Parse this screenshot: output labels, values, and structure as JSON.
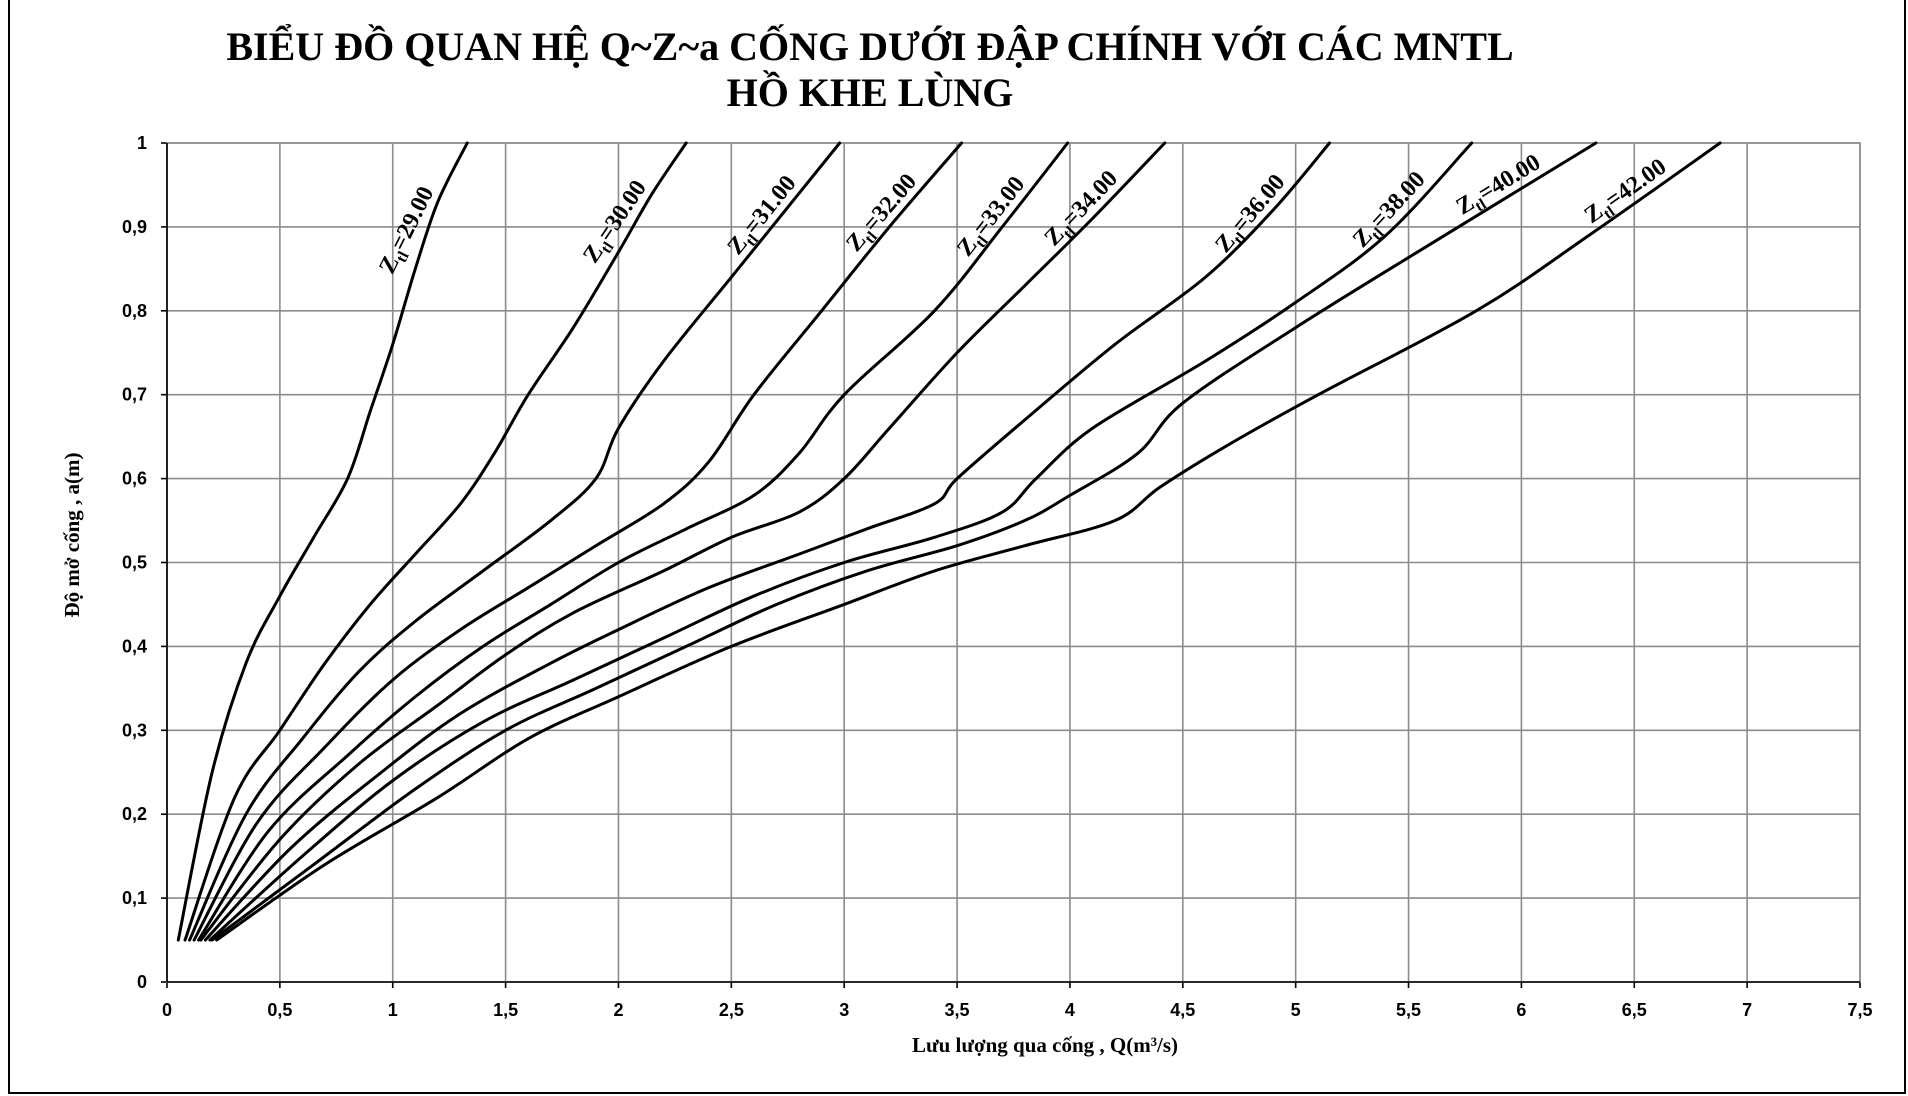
{
  "chart_data": {
    "type": "line",
    "title_line1": "BIỂU ĐỒ QUAN HỆ Q~Z~a CỐNG DƯỚI ĐẬP CHÍNH VỚI CÁC MNTL",
    "title_line2": "HỒ KHE LÙNG",
    "xlabel": "Lưu lượng qua cống , Q(m³/s)",
    "ylabel": "Độ mở cống , a(m)",
    "xlim": [
      0,
      7.5
    ],
    "ylim": [
      0,
      1
    ],
    "grid": true,
    "x_ticks": [
      "0",
      "0,5",
      "1",
      "1,5",
      "2",
      "2,5",
      "3",
      "3,5",
      "4",
      "4,5",
      "5",
      "5,5",
      "6",
      "6,5",
      "7",
      "7,5"
    ],
    "y_ticks": [
      "0",
      "0,1",
      "0,2",
      "0,3",
      "0,4",
      "0,5",
      "0,6",
      "0,7",
      "0,8",
      "0,9",
      "1"
    ],
    "line_color": "#000000",
    "grid_color": "#8c8c8c",
    "series": [
      {
        "name": "Ztl=29.00",
        "label_prefix": "Z",
        "label_sub": "tl",
        "label_value": "=29.00",
        "points": [
          [
            0.05,
            0.05
          ],
          [
            0.2,
            0.25
          ],
          [
            0.35,
            0.38
          ],
          [
            0.5,
            0.46
          ],
          [
            0.65,
            0.53
          ],
          [
            0.8,
            0.6
          ],
          [
            0.9,
            0.68
          ],
          [
            1.0,
            0.76
          ],
          [
            1.1,
            0.85
          ],
          [
            1.2,
            0.93
          ],
          [
            1.33,
            1.0
          ]
        ]
      },
      {
        "name": "Ztl=30.00",
        "label_prefix": "Z",
        "label_sub": "tl",
        "label_value": "=30.00",
        "points": [
          [
            0.08,
            0.05
          ],
          [
            0.3,
            0.22
          ],
          [
            0.5,
            0.3
          ],
          [
            0.7,
            0.38
          ],
          [
            0.9,
            0.45
          ],
          [
            1.1,
            0.51
          ],
          [
            1.3,
            0.57
          ],
          [
            1.45,
            0.63
          ],
          [
            1.6,
            0.7
          ],
          [
            1.8,
            0.78
          ],
          [
            2.0,
            0.87
          ],
          [
            2.15,
            0.94
          ],
          [
            2.3,
            1.0
          ]
        ]
      },
      {
        "name": "Ztl=31.00",
        "label_prefix": "Z",
        "label_sub": "tl",
        "label_value": "=31.00",
        "points": [
          [
            0.1,
            0.05
          ],
          [
            0.35,
            0.2
          ],
          [
            0.6,
            0.29
          ],
          [
            0.85,
            0.37
          ],
          [
            1.1,
            0.43
          ],
          [
            1.4,
            0.49
          ],
          [
            1.7,
            0.55
          ],
          [
            1.9,
            0.6
          ],
          [
            2.0,
            0.66
          ],
          [
            2.2,
            0.74
          ],
          [
            2.5,
            0.84
          ],
          [
            2.8,
            0.94
          ],
          [
            2.98,
            1.0
          ]
        ]
      },
      {
        "name": "Ztl=32.00",
        "label_prefix": "Z",
        "label_sub": "tl",
        "label_value": "=32.00",
        "points": [
          [
            0.12,
            0.05
          ],
          [
            0.4,
            0.19
          ],
          [
            0.7,
            0.28
          ],
          [
            1.0,
            0.36
          ],
          [
            1.3,
            0.42
          ],
          [
            1.6,
            0.47
          ],
          [
            1.9,
            0.52
          ],
          [
            2.2,
            0.57
          ],
          [
            2.4,
            0.62
          ],
          [
            2.6,
            0.7
          ],
          [
            2.9,
            0.8
          ],
          [
            3.2,
            0.9
          ],
          [
            3.52,
            1.0
          ]
        ]
      },
      {
        "name": "Ztl=33.00",
        "label_prefix": "Z",
        "label_sub": "tl",
        "label_value": "=33.00",
        "points": [
          [
            0.14,
            0.05
          ],
          [
            0.45,
            0.18
          ],
          [
            0.8,
            0.27
          ],
          [
            1.1,
            0.34
          ],
          [
            1.4,
            0.4
          ],
          [
            1.7,
            0.45
          ],
          [
            2.0,
            0.5
          ],
          [
            2.3,
            0.54
          ],
          [
            2.6,
            0.58
          ],
          [
            2.8,
            0.63
          ],
          [
            3.0,
            0.7
          ],
          [
            3.4,
            0.8
          ],
          [
            3.7,
            0.9
          ],
          [
            3.99,
            1.0
          ]
        ]
      },
      {
        "name": "Ztl=34.00",
        "label_prefix": "Z",
        "label_sub": "tl",
        "label_value": "=34.00",
        "points": [
          [
            0.15,
            0.05
          ],
          [
            0.5,
            0.17
          ],
          [
            0.85,
            0.26
          ],
          [
            1.2,
            0.33
          ],
          [
            1.5,
            0.39
          ],
          [
            1.8,
            0.44
          ],
          [
            2.2,
            0.49
          ],
          [
            2.5,
            0.53
          ],
          [
            2.8,
            0.56
          ],
          [
            3.0,
            0.6
          ],
          [
            3.2,
            0.66
          ],
          [
            3.5,
            0.75
          ],
          [
            3.8,
            0.83
          ],
          [
            4.1,
            0.91
          ],
          [
            4.42,
            1.0
          ]
        ]
      },
      {
        "name": "Ztl=36.00",
        "label_prefix": "Z",
        "label_sub": "tl",
        "label_value": "=36.00",
        "points": [
          [
            0.17,
            0.05
          ],
          [
            0.55,
            0.16
          ],
          [
            0.95,
            0.25
          ],
          [
            1.3,
            0.32
          ],
          [
            1.7,
            0.38
          ],
          [
            2.0,
            0.42
          ],
          [
            2.4,
            0.47
          ],
          [
            2.8,
            0.51
          ],
          [
            3.1,
            0.54
          ],
          [
            3.4,
            0.57
          ],
          [
            3.5,
            0.6
          ],
          [
            3.8,
            0.67
          ],
          [
            4.2,
            0.76
          ],
          [
            4.6,
            0.84
          ],
          [
            4.9,
            0.92
          ],
          [
            5.15,
            1.0
          ]
        ]
      },
      {
        "name": "Ztl=38.00",
        "label_prefix": "Z",
        "label_sub": "tl",
        "label_value": "=38.00",
        "points": [
          [
            0.19,
            0.05
          ],
          [
            0.6,
            0.15
          ],
          [
            1.0,
            0.24
          ],
          [
            1.4,
            0.31
          ],
          [
            1.8,
            0.36
          ],
          [
            2.2,
            0.41
          ],
          [
            2.6,
            0.46
          ],
          [
            3.0,
            0.5
          ],
          [
            3.4,
            0.53
          ],
          [
            3.7,
            0.56
          ],
          [
            3.85,
            0.6
          ],
          [
            4.1,
            0.66
          ],
          [
            4.6,
            0.74
          ],
          [
            5.0,
            0.81
          ],
          [
            5.4,
            0.89
          ],
          [
            5.78,
            1.0
          ]
        ]
      },
      {
        "name": "Ztl=40.00",
        "label_prefix": "Z",
        "label_sub": "tl",
        "label_value": "=40.00",
        "points": [
          [
            0.2,
            0.05
          ],
          [
            0.65,
            0.14
          ],
          [
            1.1,
            0.23
          ],
          [
            1.5,
            0.3
          ],
          [
            1.9,
            0.35
          ],
          [
            2.3,
            0.4
          ],
          [
            2.7,
            0.45
          ],
          [
            3.1,
            0.49
          ],
          [
            3.5,
            0.52
          ],
          [
            3.8,
            0.55
          ],
          [
            4.0,
            0.58
          ],
          [
            4.3,
            0.63
          ],
          [
            4.5,
            0.69
          ],
          [
            5.0,
            0.78
          ],
          [
            5.6,
            0.88
          ],
          [
            6.33,
            1.0
          ]
        ]
      },
      {
        "name": "Ztl=42.00",
        "label_prefix": "Z",
        "label_sub": "tl",
        "label_value": "=42.00",
        "points": [
          [
            0.22,
            0.05
          ],
          [
            0.7,
            0.14
          ],
          [
            1.2,
            0.22
          ],
          [
            1.6,
            0.29
          ],
          [
            2.0,
            0.34
          ],
          [
            2.5,
            0.4
          ],
          [
            3.0,
            0.45
          ],
          [
            3.4,
            0.49
          ],
          [
            3.8,
            0.52
          ],
          [
            4.2,
            0.55
          ],
          [
            4.4,
            0.59
          ],
          [
            4.7,
            0.64
          ],
          [
            5.1,
            0.7
          ],
          [
            5.8,
            0.8
          ],
          [
            6.3,
            0.89
          ],
          [
            6.88,
            1.0
          ]
        ]
      }
    ]
  }
}
